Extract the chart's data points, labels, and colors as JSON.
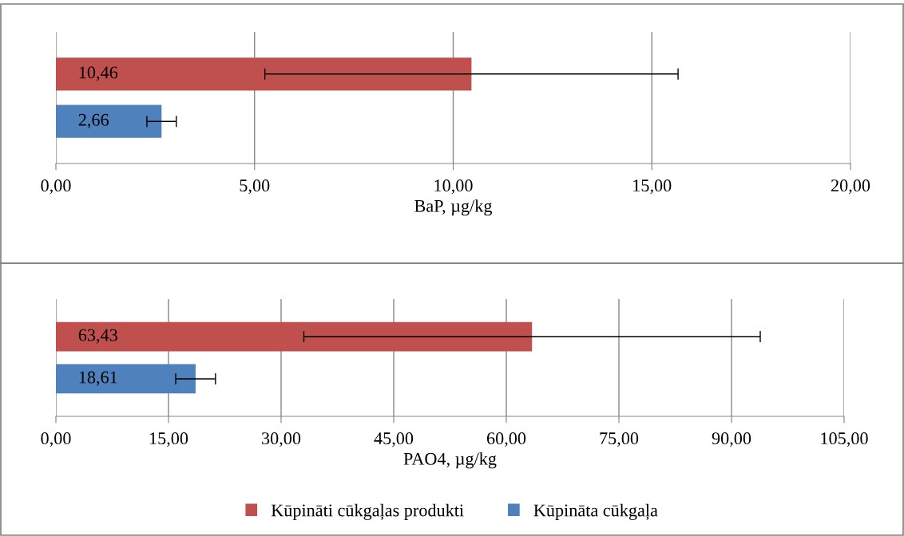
{
  "chart_data": [
    {
      "type": "bar",
      "orientation": "horizontal",
      "categories": [
        null
      ],
      "xlabel": "BaP, µg/kg",
      "xlim": [
        0,
        20
      ],
      "xticks": [
        {
          "value": 0,
          "label": "0,00"
        },
        {
          "value": 5,
          "label": "5,00"
        },
        {
          "value": 10,
          "label": "10,00"
        },
        {
          "value": 15,
          "label": "15,00"
        },
        {
          "value": 20,
          "label": "20,00"
        }
      ],
      "grid": "x",
      "tick_labels": "x",
      "series": [
        {
          "color": "#c0504d",
          "values": [
            10.46
          ],
          "errors": [
            5.2
          ],
          "value_labels": [
            "10,46"
          ]
        },
        {
          "color": "#4f81bd",
          "values": [
            2.66
          ],
          "errors": [
            0.37
          ],
          "value_labels": [
            "2,66"
          ]
        }
      ]
    },
    {
      "type": "bar",
      "orientation": "horizontal",
      "categories": [
        null
      ],
      "xlabel": "PAO4, µg/kg",
      "xlim": [
        0,
        105
      ],
      "xticks": [
        {
          "value": 0,
          "label": "0,00"
        },
        {
          "value": 15,
          "label": "15,00"
        },
        {
          "value": 30,
          "label": "30,00"
        },
        {
          "value": 45,
          "label": "45,00"
        },
        {
          "value": 60,
          "label": "60,00"
        },
        {
          "value": 75,
          "label": "75,00"
        },
        {
          "value": 90,
          "label": "90,00"
        },
        {
          "value": 105,
          "label": "105,00"
        }
      ],
      "grid": "x",
      "tick_labels": "x",
      "legend": "bottom",
      "series": [
        {
          "name": "Kūpināti cūkgaļas produkti",
          "color": "#c0504d",
          "values": [
            63.43
          ],
          "errors": [
            30.4
          ],
          "value_labels": [
            "63,43"
          ]
        },
        {
          "name": "Kūpināta cūkgaļa",
          "color": "#4f81bd",
          "values": [
            18.61
          ],
          "errors": [
            2.65
          ],
          "value_labels": [
            "18,61"
          ]
        }
      ]
    }
  ]
}
